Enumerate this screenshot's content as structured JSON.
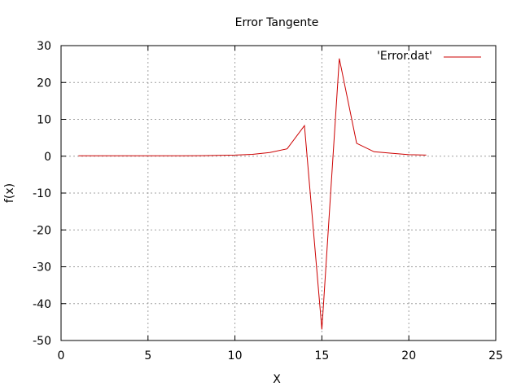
{
  "chart_data": {
    "type": "line",
    "title": "Error Tangente",
    "xlabel": "X",
    "ylabel": "f(x)",
    "xlim": [
      0,
      25
    ],
    "ylim": [
      -50,
      30
    ],
    "x_ticks": [
      0,
      5,
      10,
      15,
      20,
      25
    ],
    "y_ticks": [
      -50,
      -40,
      -30,
      -20,
      -10,
      0,
      10,
      20,
      30
    ],
    "grid": true,
    "legend_position": "top-right",
    "series": [
      {
        "name": "'Error.dat'",
        "color": "#cc0000",
        "x": [
          1,
          2,
          3,
          4,
          5,
          6,
          7,
          8,
          9,
          10,
          11,
          12,
          13,
          14,
          15,
          16,
          17,
          18,
          19,
          20,
          21
        ],
        "y": [
          0.1,
          0.1,
          0.1,
          0.1,
          0.1,
          0.1,
          0.1,
          0.15,
          0.2,
          0.3,
          0.5,
          1.0,
          2.0,
          8.3,
          -47.0,
          26.5,
          3.5,
          1.2,
          0.8,
          0.4,
          0.3
        ]
      }
    ]
  }
}
